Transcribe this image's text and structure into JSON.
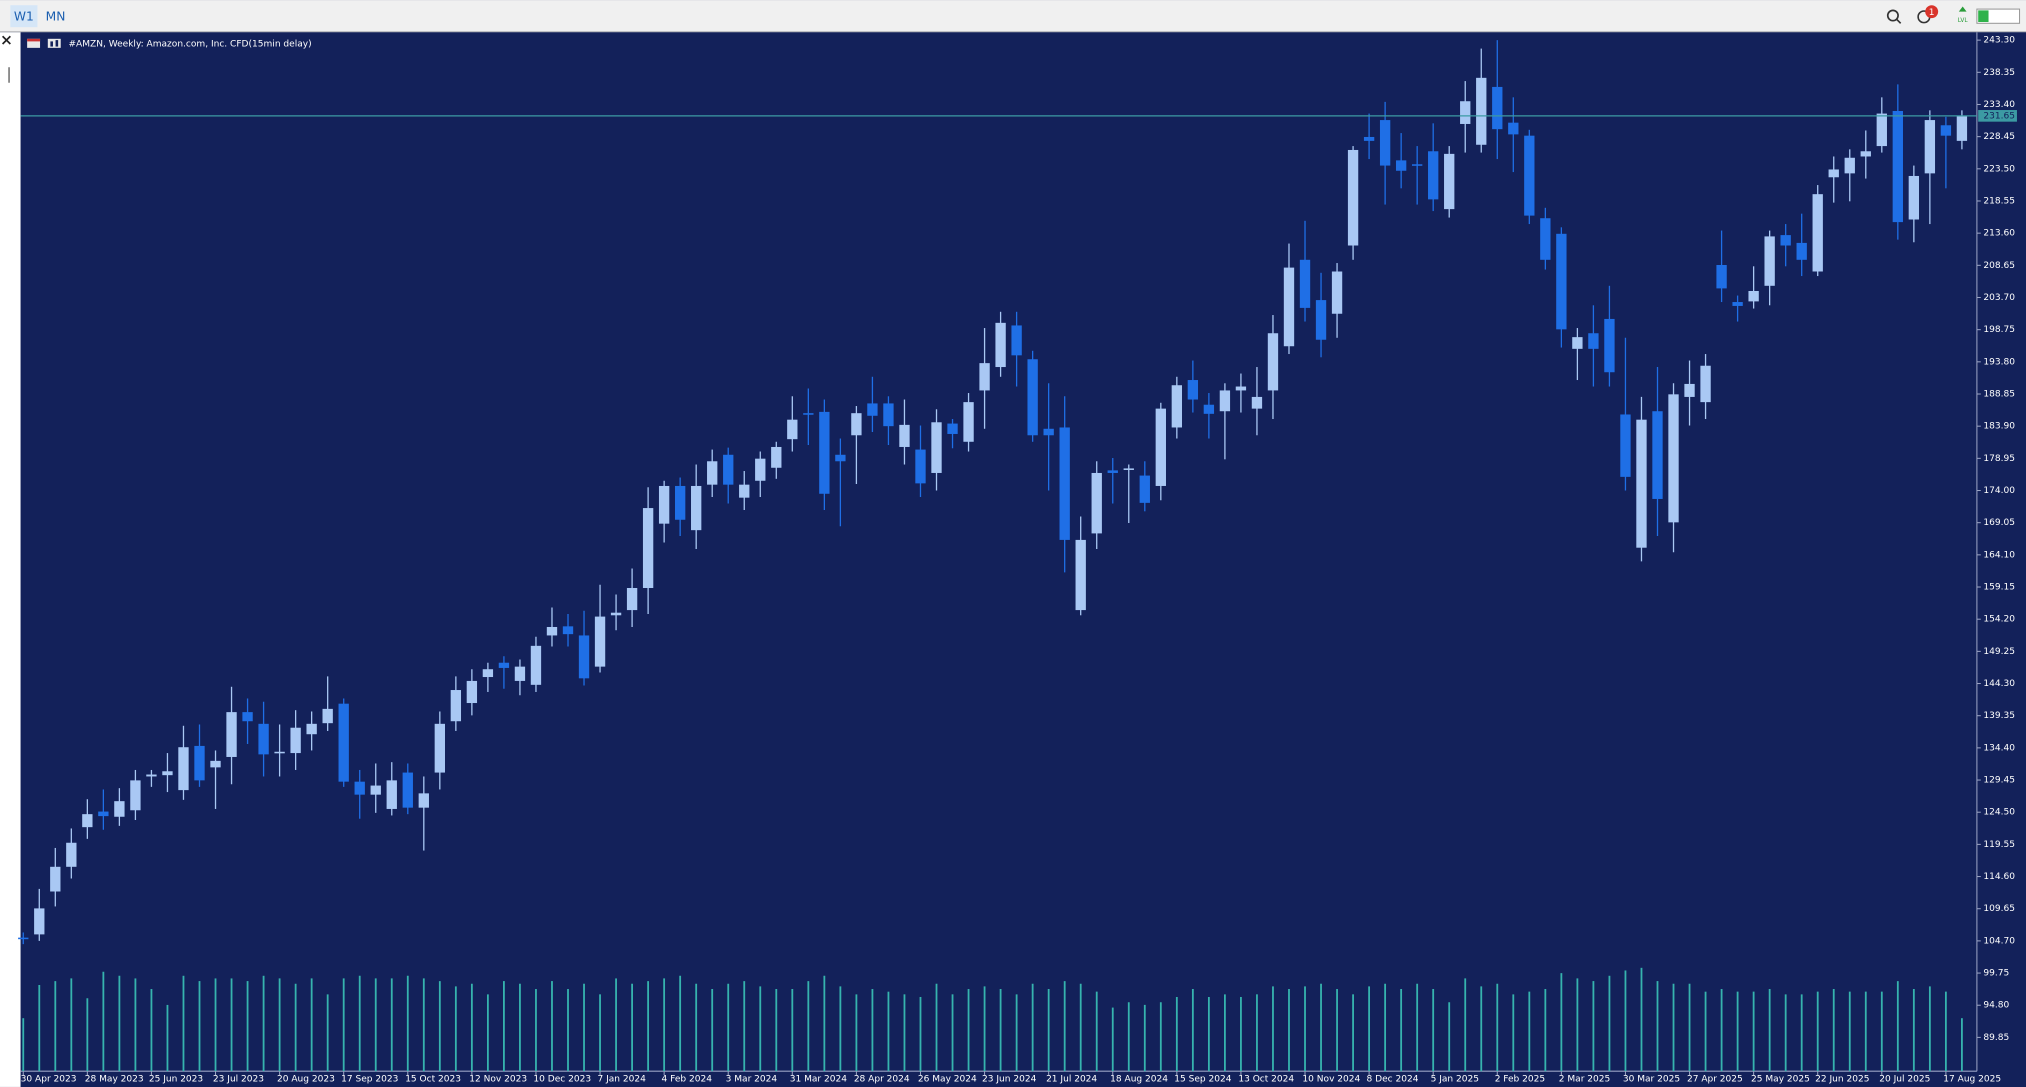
{
  "ui": {
    "timeframes": [
      "W1",
      "MN"
    ],
    "notification_count": 1,
    "level_label": "LVL"
  },
  "chart_data": {
    "type": "candlestick",
    "title": "#AMZN, Weekly:  Amazon.com, Inc. CFD(15min delay)",
    "categories": [
      "30 Apr 2023",
      null,
      null,
      null,
      "28 May 2023",
      null,
      null,
      null,
      "25 Jun 2023",
      null,
      null,
      null,
      "23 Jul 2023",
      null,
      null,
      null,
      "20 Aug 2023",
      null,
      null,
      null,
      "17 Sep 2023",
      null,
      null,
      null,
      "15 Oct 2023",
      null,
      null,
      null,
      "12 Nov 2023",
      null,
      null,
      null,
      "10 Dec 2023",
      null,
      null,
      null,
      "7 Jan 2024",
      null,
      null,
      null,
      "4 Feb 2024",
      null,
      null,
      null,
      "3 Mar 2024",
      null,
      null,
      null,
      "31 Mar 2024",
      null,
      null,
      null,
      "28 Apr 2024",
      null,
      null,
      null,
      "26 May 2024",
      null,
      null,
      null,
      "23 Jun 2024",
      null,
      null,
      null,
      "21 Jul 2024",
      null,
      null,
      null,
      "18 Aug 2024",
      null,
      null,
      null,
      "15 Sep 2024",
      null,
      null,
      null,
      "13 Oct 2024",
      null,
      null,
      null,
      "10 Nov 2024",
      null,
      null,
      null,
      "8 Dec 2024",
      null,
      null,
      null,
      "5 Jan 2025",
      null,
      null,
      null,
      "2 Feb 2025",
      null,
      null,
      null,
      "2 Mar 2025",
      null,
      null,
      null,
      "30 Mar 2025",
      null,
      null,
      null,
      "27 Apr 2025",
      null,
      null,
      null,
      "25 May 2025",
      null,
      null,
      null,
      "22 Jun 2025",
      null,
      null,
      null,
      "20 Jul 2025",
      null,
      null,
      null,
      "17 Aug 2025",
      null
    ],
    "open": [
      105.2,
      105.7,
      112.3,
      116.1,
      122.2,
      124.6,
      123.8,
      124.8,
      130.0,
      130.2,
      127.9,
      134.7,
      131.4,
      133.0,
      139.9,
      138.1,
      133.7,
      133.6,
      136.5,
      138.2,
      141.2,
      129.2,
      127.2,
      125.0,
      130.6,
      125.2,
      130.6,
      138.5,
      141.3,
      145.3,
      147.5,
      144.7,
      144.1,
      151.7,
      153.1,
      151.7,
      146.9,
      154.8,
      155.6,
      159.0,
      168.9,
      174.7,
      167.9,
      174.9,
      179.5,
      172.9,
      175.5,
      177.5,
      181.9,
      185.9,
      186.1,
      179.5,
      182.5,
      187.4,
      187.4,
      180.7,
      180.3,
      176.7,
      184.3,
      181.5,
      189.4,
      193.0,
      199.4,
      194.2,
      183.5,
      183.7,
      155.6,
      167.4,
      177.1,
      177.2,
      176.3,
      174.7,
      183.7,
      191.0,
      187.2,
      186.2,
      189.4,
      186.6,
      189.4,
      196.2,
      209.5,
      203.3,
      201.2,
      211.7,
      228.4,
      231.0,
      224.8,
      224.2,
      226.2,
      217.3,
      230.4,
      227.2,
      236.1,
      230.6,
      228.6,
      215.9,
      213.5,
      195.8,
      198.2,
      200.4,
      185.7,
      165.2,
      186.2,
      169.1,
      188.4,
      187.6,
      208.7,
      203.0,
      203.1,
      205.5,
      213.3,
      212.1,
      207.7,
      222.2,
      222.8,
      225.4,
      227.0,
      232.4,
      215.7,
      222.8,
      230.2,
      227.8
    ],
    "high": [
      106.0,
      112.7,
      119.0,
      122.0,
      126.5,
      128.0,
      128.2,
      131.0,
      131.0,
      133.6,
      137.8,
      138.0,
      134.0,
      143.8,
      142.0,
      141.5,
      138.0,
      140.2,
      140.0,
      145.4,
      142.0,
      131.0,
      132.0,
      132.2,
      132.0,
      130.0,
      140.0,
      145.4,
      146.5,
      147.5,
      148.5,
      148.0,
      151.5,
      156.0,
      155.0,
      155.5,
      159.5,
      158.0,
      162.0,
      174.5,
      175.5,
      176.0,
      178.0,
      180.3,
      180.6,
      177.0,
      180.0,
      181.5,
      188.5,
      189.7,
      188.0,
      182.0,
      187.0,
      191.5,
      188.5,
      188.0,
      184.0,
      186.5,
      185.0,
      189.0,
      199.0,
      201.5,
      201.5,
      195.5,
      190.5,
      188.5,
      170.0,
      178.5,
      179.0,
      178.0,
      178.5,
      187.5,
      191.5,
      194.0,
      189.0,
      190.5,
      192.0,
      193.0,
      201.0,
      212.0,
      215.5,
      207.5,
      209.0,
      227.0,
      232.0,
      233.8,
      229.0,
      227.0,
      230.5,
      227.0,
      237.0,
      242.0,
      243.3,
      234.5,
      229.5,
      217.5,
      214.5,
      199.0,
      202.5,
      205.5,
      197.5,
      188.4,
      193.0,
      190.5,
      194.0,
      195.0,
      214.0,
      204.0,
      208.5,
      214.0,
      215.0,
      216.6,
      221.0,
      225.4,
      226.5,
      229.4,
      234.5,
      236.5,
      224.0,
      232.5,
      231.5,
      232.5
    ],
    "low": [
      104.2,
      104.7,
      110.0,
      114.3,
      120.4,
      121.8,
      122.4,
      123.3,
      128.4,
      127.6,
      126.4,
      128.4,
      125.0,
      128.8,
      135.0,
      130.0,
      130.0,
      131.0,
      134.0,
      137.0,
      128.4,
      123.5,
      124.4,
      124.0,
      124.2,
      118.6,
      128.0,
      137.0,
      139.4,
      143.0,
      143.5,
      142.5,
      143.0,
      150.0,
      150.0,
      144.0,
      146.0,
      152.5,
      153.0,
      155.0,
      166.0,
      167.0,
      165.0,
      173.0,
      172.0,
      171.0,
      173.0,
      175.8,
      180.0,
      181.0,
      171.0,
      168.5,
      175.0,
      183.0,
      181.0,
      178.0,
      173.0,
      174.0,
      180.5,
      180.0,
      183.5,
      191.5,
      190.0,
      181.5,
      174.0,
      161.4,
      154.8,
      165.0,
      172.0,
      169.0,
      170.8,
      172.5,
      182.0,
      186.0,
      182.0,
      178.8,
      186.0,
      182.5,
      185.0,
      195.0,
      200.0,
      194.5,
      197.5,
      209.5,
      225.0,
      218.0,
      220.5,
      218.0,
      217.0,
      216.0,
      226.0,
      226.0,
      225.0,
      223.0,
      215.0,
      208.0,
      196.0,
      191.0,
      190.0,
      190.0,
      174.0,
      163.1,
      167.0,
      164.5,
      184.0,
      185.0,
      203.0,
      200.0,
      202.0,
      202.5,
      208.5,
      207.0,
      207.0,
      218.3,
      218.5,
      222.0,
      226.0,
      212.6,
      212.2,
      215.0,
      220.5,
      226.5
    ],
    "close": [
      105.0,
      109.7,
      116.1,
      119.8,
      124.2,
      123.9,
      126.2,
      129.4,
      130.3,
      130.8,
      134.5,
      129.4,
      132.4,
      139.9,
      138.5,
      133.4,
      133.8,
      137.5,
      138.1,
      140.4,
      129.2,
      127.2,
      128.6,
      129.4,
      125.2,
      127.4,
      138.1,
      143.3,
      144.7,
      146.5,
      146.7,
      146.9,
      150.1,
      153.0,
      151.9,
      145.1,
      154.6,
      155.2,
      159.0,
      171.3,
      174.7,
      169.5,
      174.7,
      178.5,
      174.9,
      174.9,
      178.9,
      180.7,
      184.9,
      185.7,
      173.5,
      178.5,
      185.9,
      185.5,
      183.9,
      184.1,
      175.1,
      184.5,
      182.7,
      187.6,
      193.6,
      199.8,
      194.8,
      182.5,
      182.5,
      166.4,
      166.4,
      176.7,
      176.7,
      177.4,
      172.1,
      186.6,
      190.2,
      188.0,
      185.8,
      189.4,
      190.0,
      188.4,
      198.2,
      208.3,
      202.1,
      197.2,
      207.7,
      226.4,
      227.8,
      224.0,
      223.2,
      224.0,
      218.8,
      225.8,
      233.9,
      237.5,
      229.6,
      228.8,
      216.3,
      209.5,
      198.8,
      197.6,
      195.8,
      192.2,
      176.1,
      184.9,
      172.7,
      188.8,
      190.4,
      193.2,
      205.1,
      202.4,
      204.7,
      213.1,
      211.7,
      209.5,
      219.6,
      223.4,
      225.2,
      226.2,
      232.0,
      215.3,
      222.4,
      231.0,
      228.6,
      231.65
    ],
    "volume": [
      40,
      65,
      68,
      70,
      55,
      75,
      72,
      70,
      62,
      50,
      72,
      68,
      70,
      70,
      68,
      72,
      70,
      66,
      70,
      58,
      70,
      72,
      70,
      70,
      72,
      70,
      68,
      64,
      66,
      58,
      68,
      66,
      62,
      68,
      62,
      66,
      58,
      70,
      66,
      68,
      70,
      72,
      66,
      62,
      66,
      68,
      64,
      62,
      62,
      68,
      72,
      64,
      58,
      62,
      60,
      58,
      56,
      66,
      58,
      62,
      64,
      62,
      58,
      66,
      62,
      68,
      66,
      60,
      48,
      52,
      50,
      52,
      56,
      62,
      56,
      58,
      56,
      58,
      64,
      62,
      64,
      66,
      62,
      58,
      64,
      66,
      62,
      66,
      62,
      52,
      70,
      64,
      66,
      58,
      60,
      62,
      74,
      70,
      68,
      72,
      76,
      78,
      68,
      66,
      66,
      60,
      62,
      60,
      60,
      62,
      58,
      58,
      60,
      62,
      60,
      60,
      60,
      68,
      62,
      64,
      60,
      40
    ],
    "up_color": "#a9c8f4",
    "down_color": "#1f6fe6",
    "volume_color": "#36b3ae",
    "ylim": [
      84.65,
      244.3
    ],
    "yticks": [
      {
        "value": 243.3,
        "label": "243.30"
      },
      238.35,
      {
        "value": 233.4,
        "label": "233.40"
      },
      228.45,
      {
        "value": 223.5,
        "label": "223.50"
      },
      218.55,
      {
        "value": 213.6,
        "label": "213.60"
      },
      208.65,
      {
        "value": 203.7,
        "label": "203.70"
      },
      198.75,
      {
        "value": 193.8,
        "label": "193.80"
      },
      188.85,
      {
        "value": 183.9,
        "label": "183.90"
      },
      178.95,
      {
        "value": 174,
        "label": "174.00"
      },
      169.05,
      {
        "value": 164.1,
        "label": "164.10"
      },
      159.15,
      {
        "value": 154.2,
        "label": "154.20"
      },
      149.25,
      {
        "value": 144.3,
        "label": "144.30"
      },
      139.35,
      {
        "value": 134.4,
        "label": "134.40"
      },
      129.45,
      {
        "value": 124.5,
        "label": "124.50"
      },
      119.55,
      {
        "value": 114.6,
        "label": "114.60"
      },
      109.65,
      {
        "value": 104.7,
        "label": "104.70"
      },
      99.75,
      {
        "value": 94.8,
        "label": "94.80"
      },
      89.85
    ],
    "current_price": 231.65,
    "current_price_color": "#3c9aa3"
  }
}
